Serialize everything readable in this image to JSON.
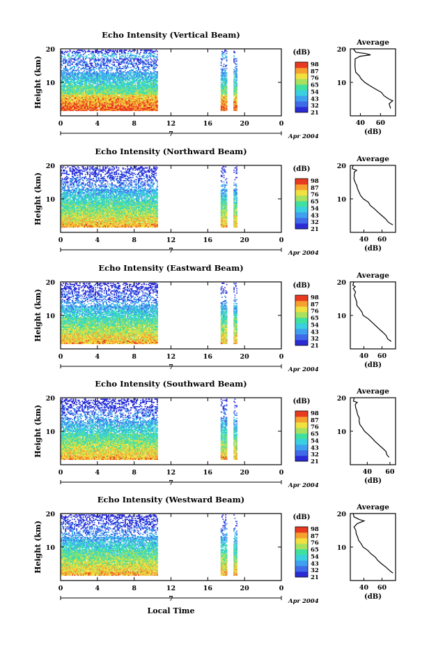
{
  "colors": {
    "scale": [
      "#2b2bd6",
      "#3f6ae8",
      "#3fa0f0",
      "#3ad0e0",
      "#40e0a0",
      "#a8e060",
      "#f0e040",
      "#f6a030",
      "#e83a20"
    ],
    "axis": "#000000"
  },
  "chart_data": [
    {
      "type": "heatmap",
      "title": "Echo Intensity (Vertical Beam)",
      "ylabel": "Height (km)",
      "yticks": [
        "20",
        "10"
      ],
      "ylim": [
        0,
        20
      ],
      "xticks": [
        "0",
        "4",
        "8",
        "12",
        "16",
        "20",
        "0"
      ],
      "xlim": [
        0,
        24
      ],
      "date_label": "7",
      "month_label": "Apr 2004",
      "data_segments": [
        [
          0,
          10.5
        ],
        [
          17.4,
          18.1
        ],
        [
          18.8,
          19.2
        ]
      ],
      "colorbar": {
        "unit": "(dB)",
        "ticks": [
          "98",
          "87",
          "76",
          "65",
          "54",
          "43",
          "32",
          "21"
        ]
      },
      "profile": {
        "title": "Average",
        "xticks": [
          "40",
          "60"
        ],
        "xlabel": "(dB)",
        "yticks": [
          "20",
          "10"
        ],
        "xlim": [
          30,
          75
        ],
        "values": [
          [
            2.2,
            70
          ],
          [
            3.6,
            68
          ],
          [
            4.5,
            72
          ],
          [
            5.0,
            68
          ],
          [
            6.0,
            64
          ],
          [
            7.0,
            60
          ],
          [
            8.0,
            55
          ],
          [
            9.0,
            50
          ],
          [
            10.0,
            45
          ],
          [
            11.0,
            40
          ],
          [
            12.0,
            38
          ],
          [
            13.0,
            36
          ],
          [
            14.0,
            35
          ],
          [
            15.0,
            34
          ],
          [
            16.0,
            34
          ],
          [
            17.0,
            34
          ],
          [
            17.8,
            40
          ],
          [
            18.2,
            50
          ],
          [
            18.6,
            45
          ],
          [
            19.0,
            36
          ],
          [
            20.0,
            34
          ]
        ]
      }
    },
    {
      "type": "heatmap",
      "title": "Echo Intensity (Northward Beam)",
      "ylabel": "Height (km)",
      "yticks": [
        "20",
        "10"
      ],
      "ylim": [
        0,
        20
      ],
      "xticks": [
        "0",
        "4",
        "8",
        "12",
        "16",
        "20",
        "0"
      ],
      "xlim": [
        0,
        24
      ],
      "date_label": "7",
      "month_label": "Apr 2004",
      "data_segments": [
        [
          0,
          10.5
        ],
        [
          17.4,
          18.1
        ],
        [
          18.8,
          19.2
        ]
      ],
      "colorbar": {
        "unit": "(dB)",
        "ticks": [
          "98",
          "87",
          "76",
          "65",
          "54",
          "43",
          "32",
          "21"
        ]
      },
      "profile": {
        "title": "Average",
        "xticks": [
          "40",
          "60"
        ],
        "xlabel": "(dB)",
        "yticks": [
          "20",
          "10"
        ],
        "xlim": [
          25,
          75
        ],
        "values": [
          [
            2.2,
            72
          ],
          [
            3.0,
            68
          ],
          [
            4.0,
            65
          ],
          [
            5.0,
            60
          ],
          [
            6.0,
            56
          ],
          [
            7.0,
            52
          ],
          [
            8.0,
            48
          ],
          [
            9.0,
            44
          ],
          [
            10.0,
            40
          ],
          [
            11.0,
            37
          ],
          [
            12.0,
            35
          ],
          [
            13.0,
            33
          ],
          [
            14.0,
            32
          ],
          [
            15.0,
            31
          ],
          [
            16.0,
            30
          ],
          [
            17.0,
            29
          ],
          [
            18.0,
            29
          ],
          [
            18.5,
            32
          ],
          [
            19.0,
            28
          ],
          [
            20.0,
            28
          ]
        ]
      }
    },
    {
      "type": "heatmap",
      "title": "Echo Intensity (Eastward Beam)",
      "ylabel": "Height (km)",
      "yticks": [
        "20",
        "10"
      ],
      "ylim": [
        0,
        20
      ],
      "xticks": [
        "0",
        "4",
        "8",
        "12",
        "16",
        "20",
        "0"
      ],
      "xlim": [
        0,
        24
      ],
      "date_label": "7",
      "month_label": "Apr 2004",
      "data_segments": [
        [
          0,
          10.5
        ],
        [
          17.4,
          18.1
        ],
        [
          18.8,
          19.2
        ]
      ],
      "colorbar": {
        "unit": "(dB)",
        "ticks": [
          "98",
          "87",
          "76",
          "65",
          "54",
          "43",
          "32",
          "21"
        ]
      },
      "profile": {
        "title": "Average",
        "xticks": [
          "40",
          "60"
        ],
        "xlabel": "(dB)",
        "yticks": [
          "20",
          "10"
        ],
        "xlim": [
          25,
          75
        ],
        "values": [
          [
            2.2,
            70
          ],
          [
            3.0,
            67
          ],
          [
            4.0,
            64
          ],
          [
            5.0,
            60
          ],
          [
            6.0,
            56
          ],
          [
            7.0,
            52
          ],
          [
            8.0,
            48
          ],
          [
            9.0,
            44
          ],
          [
            10.0,
            40
          ],
          [
            11.0,
            37
          ],
          [
            12.0,
            35
          ],
          [
            13.0,
            33
          ],
          [
            14.0,
            32
          ],
          [
            15.0,
            31
          ],
          [
            16.0,
            30
          ],
          [
            17.0,
            30
          ],
          [
            18.0,
            29
          ],
          [
            18.6,
            31
          ],
          [
            19.0,
            28
          ],
          [
            20.0,
            28
          ]
        ]
      }
    },
    {
      "type": "heatmap",
      "title": "Echo Intensity (Southward Beam)",
      "ylabel": "Height (km)",
      "yticks": [
        "20",
        "10"
      ],
      "ylim": [
        0,
        20
      ],
      "xticks": [
        "0",
        "4",
        "8",
        "12",
        "16",
        "20",
        "0"
      ],
      "xlim": [
        0,
        24
      ],
      "date_label": "7",
      "month_label": "Apr 2004",
      "data_segments": [
        [
          0,
          10.5
        ],
        [
          17.4,
          18.1
        ],
        [
          18.8,
          19.2
        ]
      ],
      "colorbar": {
        "unit": "(dB)",
        "ticks": [
          "98",
          "87",
          "76",
          "65",
          "54",
          "43",
          "32",
          "21"
        ]
      },
      "profile": {
        "title": "Average",
        "xticks": [
          "40",
          "60"
        ],
        "xlabel": "(dB)",
        "yticks": [
          "20",
          "10"
        ],
        "xlim": [
          25,
          65
        ],
        "values": [
          [
            2.2,
            60
          ],
          [
            3.0,
            58
          ],
          [
            4.0,
            56
          ],
          [
            5.0,
            53
          ],
          [
            6.0,
            50
          ],
          [
            7.0,
            47
          ],
          [
            8.0,
            44
          ],
          [
            9.0,
            41
          ],
          [
            10.0,
            38
          ],
          [
            11.0,
            36
          ],
          [
            12.0,
            34
          ],
          [
            13.0,
            33
          ],
          [
            14.0,
            32
          ],
          [
            15.0,
            31
          ],
          [
            16.0,
            30
          ],
          [
            17.0,
            30
          ],
          [
            18.0,
            29
          ],
          [
            18.6,
            31
          ],
          [
            19.0,
            28
          ],
          [
            20.0,
            28
          ]
        ]
      }
    },
    {
      "type": "heatmap",
      "title": "Echo Intensity (Westward Beam)",
      "ylabel": "Height (km)",
      "yticks": [
        "20",
        "10"
      ],
      "ylim": [
        0,
        20
      ],
      "xticks": [
        "0",
        "4",
        "8",
        "12",
        "16",
        "20",
        "0"
      ],
      "xlim": [
        0,
        24
      ],
      "date_label": "7",
      "month_label": "Apr 2004",
      "data_segments": [
        [
          0,
          10.5
        ],
        [
          17.4,
          18.1
        ],
        [
          18.8,
          19.2
        ]
      ],
      "colorbar": {
        "unit": "(dB)",
        "ticks": [
          "98",
          "87",
          "76",
          "65",
          "54",
          "43",
          "32",
          "21"
        ]
      },
      "profile": {
        "title": "Average",
        "xticks": [
          "40",
          "60"
        ],
        "xlabel": "(dB)",
        "yticks": [
          "20",
          "10"
        ],
        "xlim": [
          25,
          75
        ],
        "values": [
          [
            2.2,
            72
          ],
          [
            3.0,
            68
          ],
          [
            4.0,
            64
          ],
          [
            5.0,
            60
          ],
          [
            6.0,
            56
          ],
          [
            7.0,
            52
          ],
          [
            8.0,
            48
          ],
          [
            9.0,
            44
          ],
          [
            10.0,
            40
          ],
          [
            11.0,
            37
          ],
          [
            12.0,
            35
          ],
          [
            13.0,
            33
          ],
          [
            14.0,
            32
          ],
          [
            15.0,
            31
          ],
          [
            16.0,
            30
          ],
          [
            17.0,
            33
          ],
          [
            17.8,
            40
          ],
          [
            18.2,
            36
          ],
          [
            19.0,
            30
          ],
          [
            20.0,
            29
          ]
        ]
      }
    }
  ],
  "footer": {
    "xlabel": "Local Time"
  }
}
